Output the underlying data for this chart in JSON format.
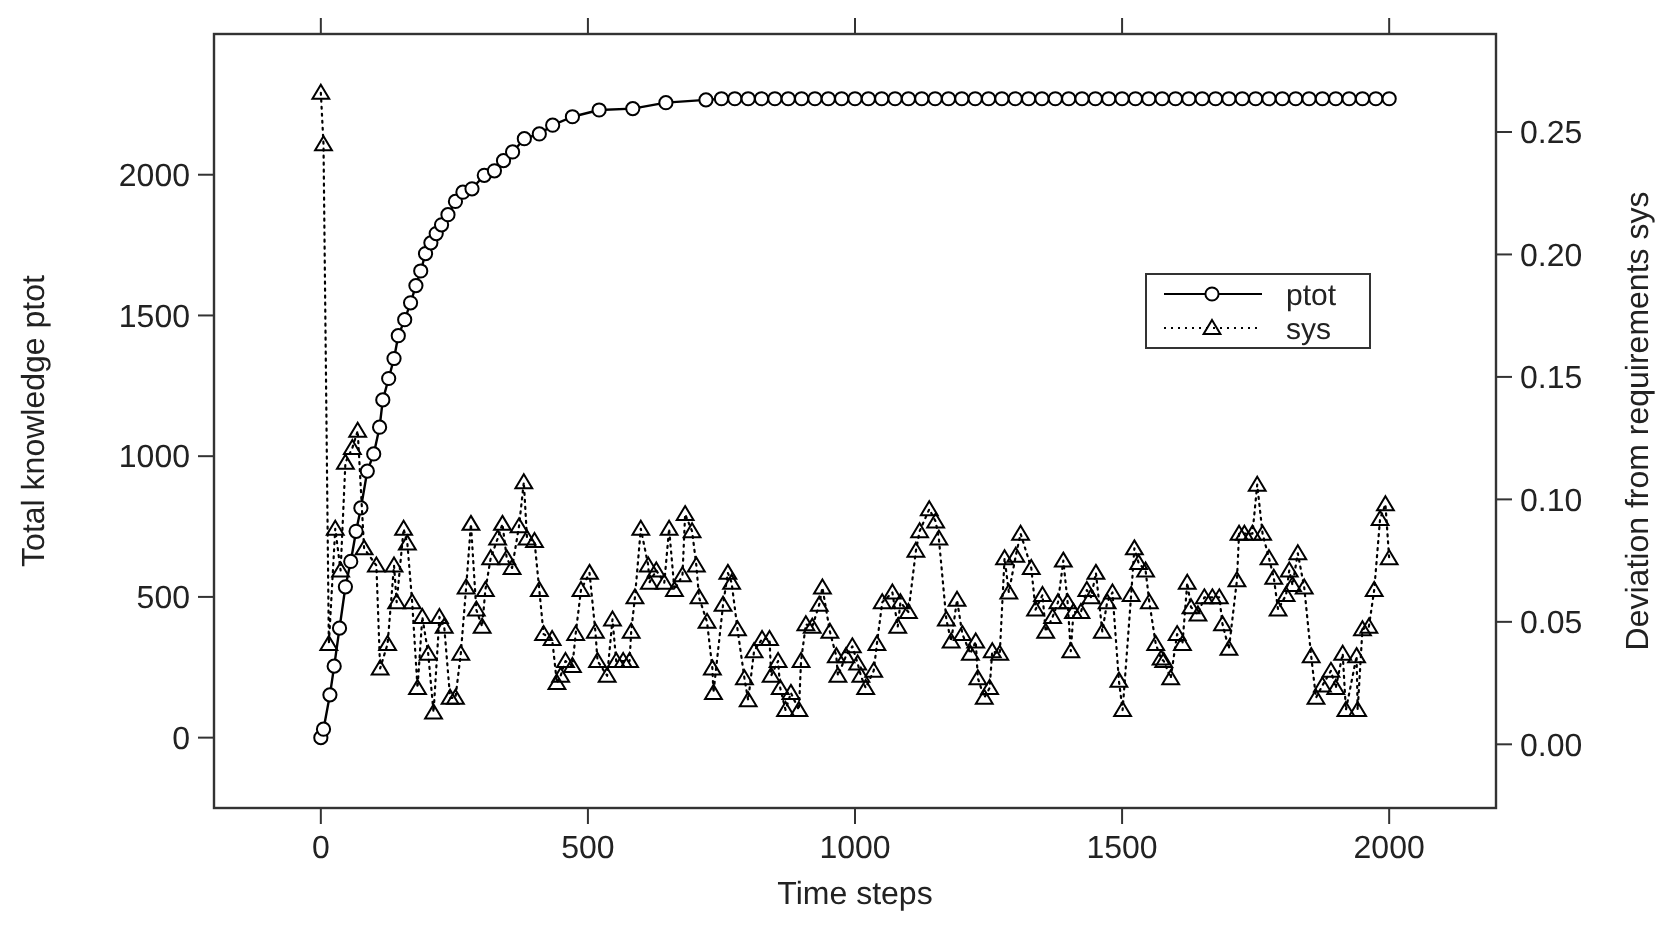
{
  "chart_data": {
    "type": "line",
    "xlabel": "Time steps",
    "ylabel": "Total knowledge ptot",
    "y2label": "Deviation from requirements sys",
    "xlim": [
      -200,
      2200
    ],
    "xticks": [
      0,
      500,
      1000,
      1500,
      2000
    ],
    "ylim": [
      -250,
      2500
    ],
    "yticks": [
      0,
      500,
      1000,
      1500,
      2000
    ],
    "y2lim": [
      -0.026,
      0.29
    ],
    "y2ticks": [
      {
        "value": 0,
        "label": "0.00"
      },
      {
        "value": 0.05,
        "label": "0.05"
      },
      {
        "value": 0.1,
        "label": "0.10"
      },
      {
        "value": 0.15,
        "label": "0.15"
      },
      {
        "value": 0.2,
        "label": "0.20"
      },
      {
        "value": 0.25,
        "label": "0.25"
      }
    ],
    "grid": false,
    "legend": "right",
    "series": [
      {
        "name": "ptot",
        "color": "#000000",
        "marker": "circle",
        "line_style": "solid",
        "x": [
          0,
          5,
          17,
          25,
          35,
          46,
          56,
          66,
          75,
          87,
          99,
          110,
          116,
          127,
          137,
          145,
          157,
          168,
          178,
          187,
          196,
          206,
          216,
          226,
          238,
          252,
          266,
          283,
          306,
          325,
          342,
          359,
          381,
          409,
          434,
          471,
          521,
          584,
          646,
          721,
          750,
          775,
          800,
          825,
          850,
          875,
          900,
          925,
          950,
          975,
          1000,
          1025,
          1050,
          1075,
          1100,
          1125,
          1150,
          1175,
          1200,
          1225,
          1250,
          1275,
          1300,
          1325,
          1350,
          1375,
          1400,
          1425,
          1450,
          1475,
          1500,
          1525,
          1550,
          1575,
          1600,
          1625,
          1650,
          1675,
          1700,
          1725,
          1750,
          1775,
          1800,
          1825,
          1850,
          1875,
          1900,
          1925,
          1950,
          1975,
          2000
        ],
        "values": [
          0,
          30,
          152,
          254,
          389,
          536,
          626,
          733,
          816,
          947,
          1008,
          1103,
          1200,
          1276,
          1347,
          1428,
          1485,
          1545,
          1606,
          1658,
          1720,
          1758,
          1791,
          1822,
          1858,
          1905,
          1938,
          1950,
          1998,
          2014,
          2050,
          2081,
          2128,
          2145,
          2176,
          2206,
          2230,
          2235,
          2256,
          2266,
          2270,
          2270,
          2270,
          2270,
          2270,
          2270,
          2270,
          2270,
          2270,
          2270,
          2270,
          2270,
          2270,
          2270,
          2270,
          2270,
          2270,
          2270,
          2270,
          2270,
          2270,
          2270,
          2270,
          2270,
          2270,
          2270,
          2270,
          2270,
          2270,
          2270,
          2270,
          2270,
          2270,
          2270,
          2270,
          2270,
          2270,
          2270,
          2270,
          2270,
          2270,
          2270,
          2270,
          2270,
          2270,
          2270,
          2270,
          2270,
          2270,
          2270,
          2270
        ]
      },
      {
        "name": "sys",
        "color": "#000000",
        "marker": "triangle",
        "line_style": "dotted",
        "axis": "y2",
        "x": [
          0,
          5,
          15,
          27,
          37,
          46,
          59,
          69,
          81,
          104,
          111,
          125,
          137,
          142,
          155,
          162,
          171,
          181,
          190,
          201,
          211,
          222,
          231,
          242,
          252,
          262,
          272,
          281,
          291,
          302,
          308,
          318,
          331,
          340,
          348,
          358,
          371,
          380,
          386,
          400,
          409,
          417,
          433,
          442,
          449,
          458,
          471,
          477,
          487,
          503,
          514,
          518,
          536,
          546,
          553,
          566,
          578,
          581,
          588,
          599,
          613,
          615,
          628,
          643,
          652,
          662,
          677,
          682,
          695,
          703,
          708,
          723,
          733,
          735,
          753,
          762,
          769,
          780,
          793,
          800,
          811,
          826,
          840,
          843,
          856,
          860,
          870,
          880,
          895,
          899,
          908,
          920,
          933,
          939,
          953,
          965,
          968,
          983,
          995,
          1005,
          1011,
          1020,
          1035,
          1041,
          1051,
          1070,
          1080,
          1085,
          1100,
          1114,
          1121,
          1139,
          1151,
          1157,
          1171,
          1180,
          1191,
          1201,
          1216,
          1226,
          1230,
          1242,
          1252,
          1257,
          1271,
          1280,
          1288,
          1301,
          1310,
          1330,
          1338,
          1351,
          1357,
          1370,
          1380,
          1390,
          1398,
          1404,
          1409,
          1423,
          1434,
          1442,
          1451,
          1463,
          1472,
          1482,
          1494,
          1501,
          1517,
          1523,
          1531,
          1544,
          1551,
          1563,
          1573,
          1578,
          1591,
          1603,
          1613,
          1622,
          1629,
          1642,
          1654,
          1669,
          1682,
          1688,
          1700,
          1715,
          1719,
          1729,
          1744,
          1753,
          1763,
          1775,
          1784,
          1792,
          1807,
          1813,
          1819,
          1829,
          1841,
          1854,
          1863,
          1875,
          1891,
          1900,
          1913,
          1919,
          1939,
          1941,
          1950,
          1962,
          1972,
          1983,
          1993,
          2000
        ],
        "values": [
          0.266,
          0.245,
          0.041,
          0.088,
          0.071,
          0.115,
          0.121,
          0.128,
          0.08,
          0.073,
          0.031,
          0.041,
          0.073,
          0.058,
          0.088,
          0.082,
          0.058,
          0.023,
          0.052,
          0.037,
          0.013,
          0.052,
          0.048,
          0.019,
          0.019,
          0.037,
          0.064,
          0.09,
          0.055,
          0.048,
          0.063,
          0.076,
          0.084,
          0.09,
          0.076,
          0.072,
          0.089,
          0.107,
          0.084,
          0.083,
          0.063,
          0.045,
          0.043,
          0.025,
          0.028,
          0.034,
          0.032,
          0.045,
          0.063,
          0.07,
          0.046,
          0.034,
          0.028,
          0.051,
          0.034,
          0.034,
          0.034,
          0.046,
          0.06,
          0.088,
          0.073,
          0.066,
          0.071,
          0.066,
          0.088,
          0.063,
          0.069,
          0.094,
          0.087,
          0.073,
          0.06,
          0.05,
          0.031,
          0.021,
          0.057,
          0.07,
          0.066,
          0.047,
          0.027,
          0.018,
          0.038,
          0.043,
          0.043,
          0.028,
          0.034,
          0.023,
          0.014,
          0.021,
          0.014,
          0.034,
          0.049,
          0.048,
          0.057,
          0.064,
          0.046,
          0.036,
          0.028,
          0.036,
          0.04,
          0.033,
          0.028,
          0.023,
          0.03,
          0.041,
          0.058,
          0.062,
          0.048,
          0.058,
          0.054,
          0.079,
          0.087,
          0.096,
          0.091,
          0.084,
          0.051,
          0.042,
          0.059,
          0.045,
          0.037,
          0.042,
          0.027,
          0.019,
          0.023,
          0.038,
          0.037,
          0.076,
          0.062,
          0.077,
          0.086,
          0.072,
          0.055,
          0.061,
          0.046,
          0.052,
          0.058,
          0.075,
          0.058,
          0.038,
          0.054,
          0.054,
          0.063,
          0.06,
          0.07,
          0.046,
          0.058,
          0.062,
          0.026,
          0.014,
          0.061,
          0.08,
          0.074,
          0.071,
          0.058,
          0.041,
          0.035,
          0.034,
          0.027,
          0.045,
          0.041,
          0.066,
          0.056,
          0.053,
          0.06,
          0.06,
          0.06,
          0.049,
          0.039,
          0.067,
          0.086,
          0.086,
          0.086,
          0.106,
          0.086,
          0.076,
          0.068,
          0.055,
          0.061,
          0.071,
          0.065,
          0.078,
          0.064,
          0.036,
          0.019,
          0.024,
          0.03,
          0.023,
          0.037,
          0.014,
          0.036,
          0.014,
          0.047,
          0.048,
          0.063,
          0.092,
          0.098,
          0.076
        ]
      }
    ]
  }
}
